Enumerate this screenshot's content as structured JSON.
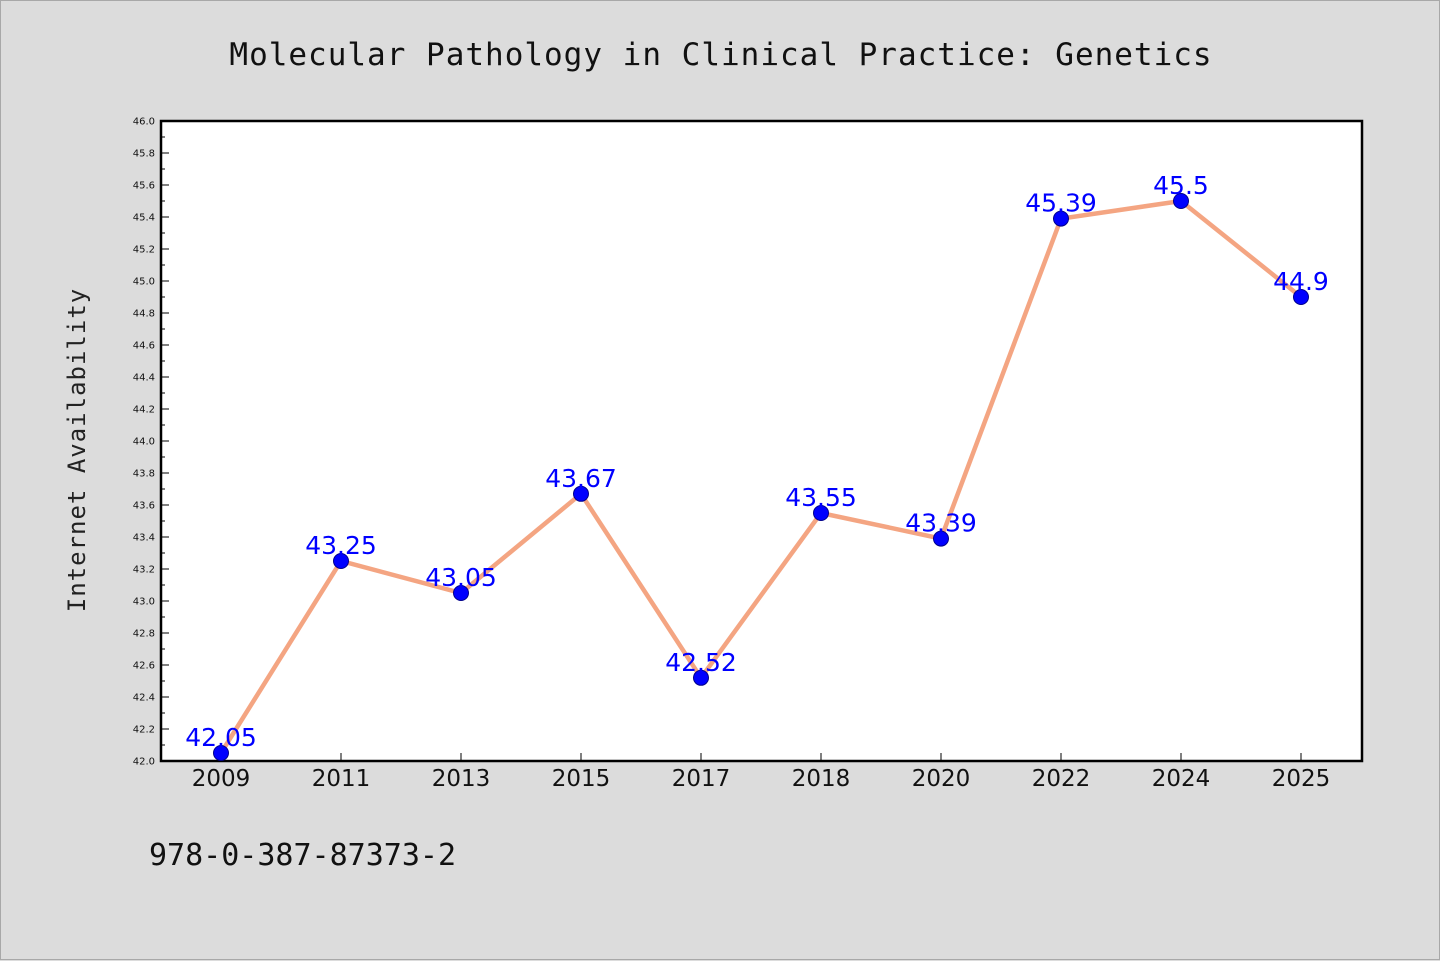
{
  "colors": {
    "background": "#dcdcdc",
    "plot_background": "#ffffff",
    "line": "#f4a582",
    "marker": "#0000ff",
    "data_label": "#0000ff"
  },
  "chart_data": {
    "type": "line",
    "title": "Molecular Pathology in Clinical Practice: Genetics",
    "xlabel": "",
    "ylabel": "Internet Availability",
    "categories": [
      "2009",
      "2011",
      "2013",
      "2015",
      "2017",
      "2018",
      "2020",
      "2022",
      "2024",
      "2025"
    ],
    "series": [
      {
        "values": [
          42.05,
          43.25,
          43.05,
          43.67,
          42.52,
          43.55,
          43.39,
          45.39,
          45.5,
          44.9
        ],
        "labels": [
          "42.05",
          "43.25",
          "43.05",
          "43.67",
          "42.52",
          "43.55",
          "43.39",
          "45.39",
          "45.5",
          "44.9"
        ]
      }
    ],
    "ylim": [
      42.0,
      46.0
    ],
    "y_ticks": [
      "42.0",
      "42.2",
      "42.4",
      "42.6",
      "42.8",
      "43.0",
      "43.2",
      "43.4",
      "43.6",
      "43.8",
      "44.0",
      "44.2",
      "44.4",
      "44.6",
      "44.8",
      "45.0",
      "45.2",
      "45.4",
      "45.6",
      "45.8",
      "46.0"
    ],
    "grid": false,
    "legend": "none",
    "annotation": "978-0-387-87373-2"
  }
}
